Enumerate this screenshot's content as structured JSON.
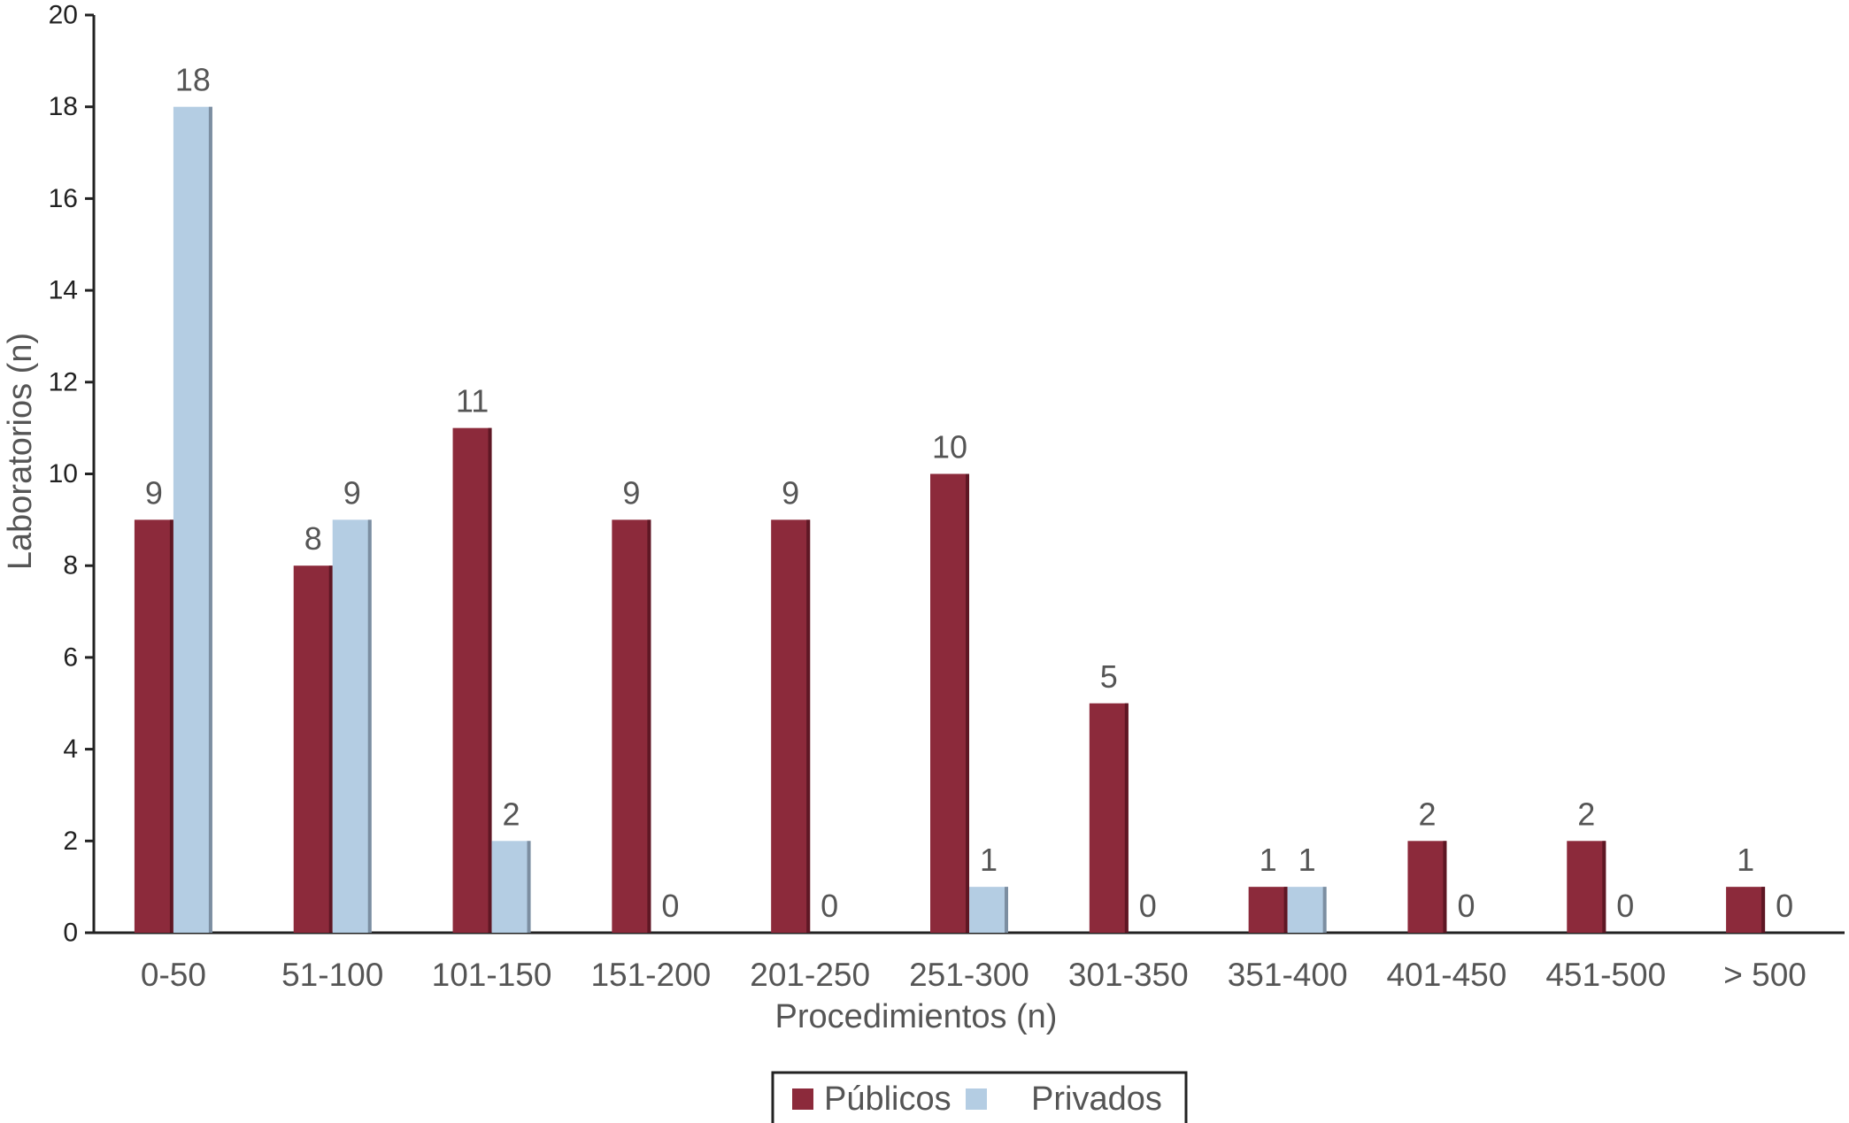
{
  "chart_data": {
    "type": "bar",
    "categories": [
      "0-50",
      "51-100",
      "101-150",
      "151-200",
      "201-250",
      "251-300",
      "301-350",
      "351-400",
      "401-450",
      "451-500",
      "> 500"
    ],
    "series": [
      {
        "name": "Públicos",
        "color": "#8c2a3b",
        "values": [
          9,
          8,
          11,
          9,
          9,
          10,
          5,
          1,
          2,
          2,
          1
        ]
      },
      {
        "name": "Privados",
        "color": "#b4cde3",
        "values": [
          18,
          9,
          2,
          0,
          0,
          1,
          0,
          1,
          0,
          0,
          0
        ]
      }
    ],
    "xlabel": "Procedimientos (n)",
    "ylabel": "Laboratorios (n)",
    "ylim": [
      0,
      20
    ],
    "yticks": [
      0,
      2,
      4,
      6,
      8,
      10,
      12,
      14,
      16,
      18,
      20
    ],
    "grid": false,
    "legend_position": "bottom-center",
    "data_labels": true
  }
}
